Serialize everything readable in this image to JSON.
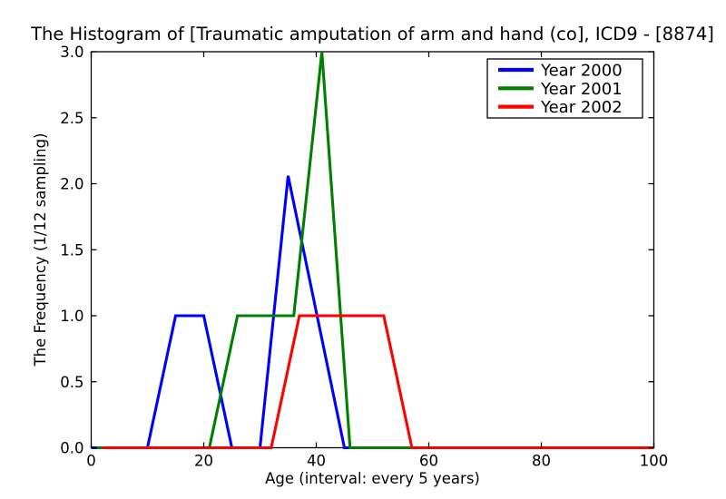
{
  "figure": {
    "background_color": "#ffffff",
    "axis_color": "#000000"
  },
  "chart_data": {
    "type": "line",
    "title": "The Histogram of [Traumatic amputation of arm and hand (co], ICD9 - [8874]",
    "xlabel": "Age (interval: every 5 years)",
    "ylabel": "The Frequency (1/12 sampling)",
    "xlim": [
      0,
      100
    ],
    "ylim": [
      0,
      3.0
    ],
    "xticks": [
      0,
      20,
      40,
      60,
      80,
      100
    ],
    "yticks": [
      0.0,
      0.5,
      1.0,
      1.5,
      2.0,
      2.5,
      3.0
    ],
    "grid": false,
    "legend": {
      "position": "upper right",
      "framed": true,
      "entries": [
        "Year 2000",
        "Year 2001",
        "Year 2002"
      ]
    },
    "series": [
      {
        "name": "Year 2000",
        "color": "#0000ff",
        "points": [
          [
            0,
            0
          ],
          [
            10,
            0
          ],
          [
            15,
            1.0
          ],
          [
            20,
            1.0
          ],
          [
            25,
            0
          ],
          [
            30,
            0
          ],
          [
            35,
            2.06
          ],
          [
            45,
            0
          ],
          [
            100,
            0
          ]
        ]
      },
      {
        "name": "Year 2001",
        "color": "#008000",
        "points": [
          [
            1,
            0
          ],
          [
            21,
            0
          ],
          [
            26,
            1.0
          ],
          [
            36,
            1.0
          ],
          [
            41,
            3.0
          ],
          [
            46,
            0
          ],
          [
            100,
            0
          ]
        ]
      },
      {
        "name": "Year 2002",
        "color": "#ff0000",
        "points": [
          [
            2,
            0
          ],
          [
            32,
            0
          ],
          [
            37,
            1.0
          ],
          [
            52,
            1.0
          ],
          [
            57,
            0
          ],
          [
            100,
            0
          ]
        ]
      }
    ]
  }
}
